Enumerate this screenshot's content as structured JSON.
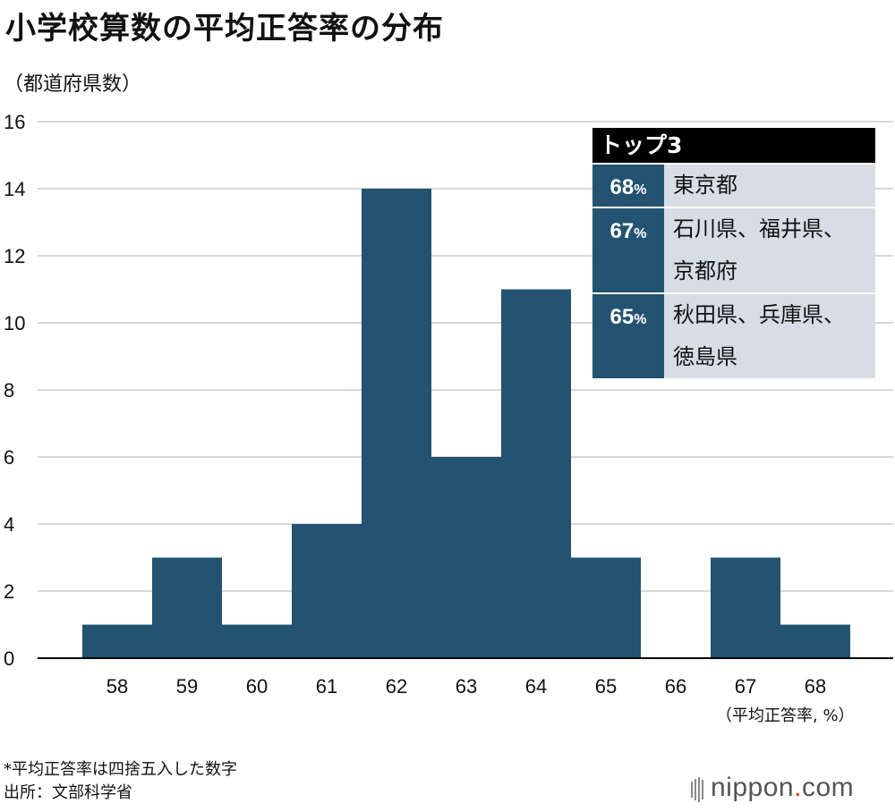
{
  "header": {
    "title": "小学校算数の平均正答率の分布",
    "y_unit": "（都道府県数）",
    "x_unit": "（平均正答率, %）"
  },
  "chart_data": {
    "type": "bar",
    "title": "小学校算数の平均正答率の分布",
    "xlabel": "（平均正答率, %）",
    "ylabel": "（都道府県数）",
    "categories": [
      "58",
      "59",
      "60",
      "61",
      "62",
      "63",
      "64",
      "65",
      "66",
      "67",
      "68"
    ],
    "values": [
      1,
      3,
      1,
      4,
      14,
      6,
      11,
      3,
      0,
      3,
      1
    ],
    "ylim": [
      0,
      16
    ],
    "yticks": [
      0,
      2,
      4,
      6,
      8,
      10,
      12,
      14,
      16
    ],
    "grid": true,
    "bar_color": "#235370"
  },
  "top3": {
    "heading": "トップ3",
    "rows": [
      {
        "pct": "68",
        "unit": "%",
        "names": [
          "東京都"
        ]
      },
      {
        "pct": "67",
        "unit": "%",
        "names": [
          "石川県、福井県、",
          "京都府"
        ]
      },
      {
        "pct": "65",
        "unit": "%",
        "names": [
          "秋田県、兵庫県、",
          "徳島県"
        ]
      }
    ]
  },
  "footer": {
    "note": "*平均正答率は四捨五入した数字",
    "source": "出所：文部科学省",
    "brand_main": "nippon",
    "brand_dot": ".",
    "brand_tld": "com"
  },
  "colors": {
    "accent": "#235370",
    "panel": "#d6dde4",
    "grid": "#cccccc",
    "brand_dot": "#e8380d"
  }
}
